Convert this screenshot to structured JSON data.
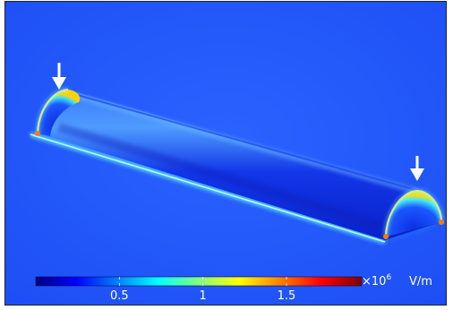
{
  "colorbar": {
    "ticks": [
      "0.5",
      "1",
      "1.5"
    ],
    "tick_values": [
      0.5,
      1,
      1.5
    ],
    "range": [
      0,
      1.95
    ],
    "multiplier": "×10",
    "exponent": "6",
    "unit": "V/m",
    "colormap": [
      "#00007f",
      "#0000ff",
      "#0080ff",
      "#00ffff",
      "#80ff80",
      "#ffff00",
      "#ff8000",
      "#ff0000",
      "#7f0000"
    ]
  },
  "annotations": {
    "arrows": [
      "left-cap-arrow",
      "right-cap-arrow"
    ],
    "arrow_color": "#ffffff"
  },
  "colors": {
    "background": "#1f5bff",
    "rod_body": "#0d2fe0",
    "edge_glow": "#00e5ff",
    "hot_spot": "#ff6a00"
  }
}
